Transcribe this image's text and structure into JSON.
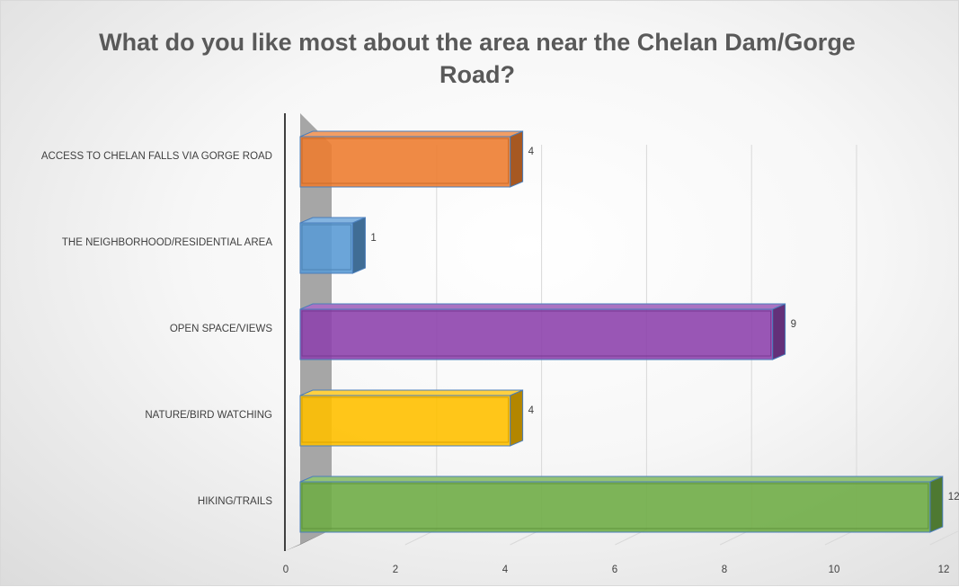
{
  "chart_data": {
    "type": "bar",
    "orientation": "horizontal",
    "style": "3d",
    "title": "What do you like most about the area near the Chelan Dam/Gorge Road?",
    "categories": [
      "ACCESS TO CHELAN FALLS VIA GORGE ROAD",
      "THE NEIGHBORHOOD/RESIDENTIAL AREA",
      "OPEN SPACE/VIEWS",
      "NATURE/BIRD WATCHING",
      "HIKING/TRAILS"
    ],
    "values": [
      4,
      1,
      9,
      4,
      12
    ],
    "colors": [
      "#ed7d31",
      "#5b9bd5",
      "#8e44ad",
      "#ffc000",
      "#70ad47"
    ],
    "xlim": [
      0,
      12
    ],
    "xticks": [
      0,
      2,
      4,
      6,
      8,
      10,
      12
    ],
    "grid": true,
    "legend": "none"
  }
}
